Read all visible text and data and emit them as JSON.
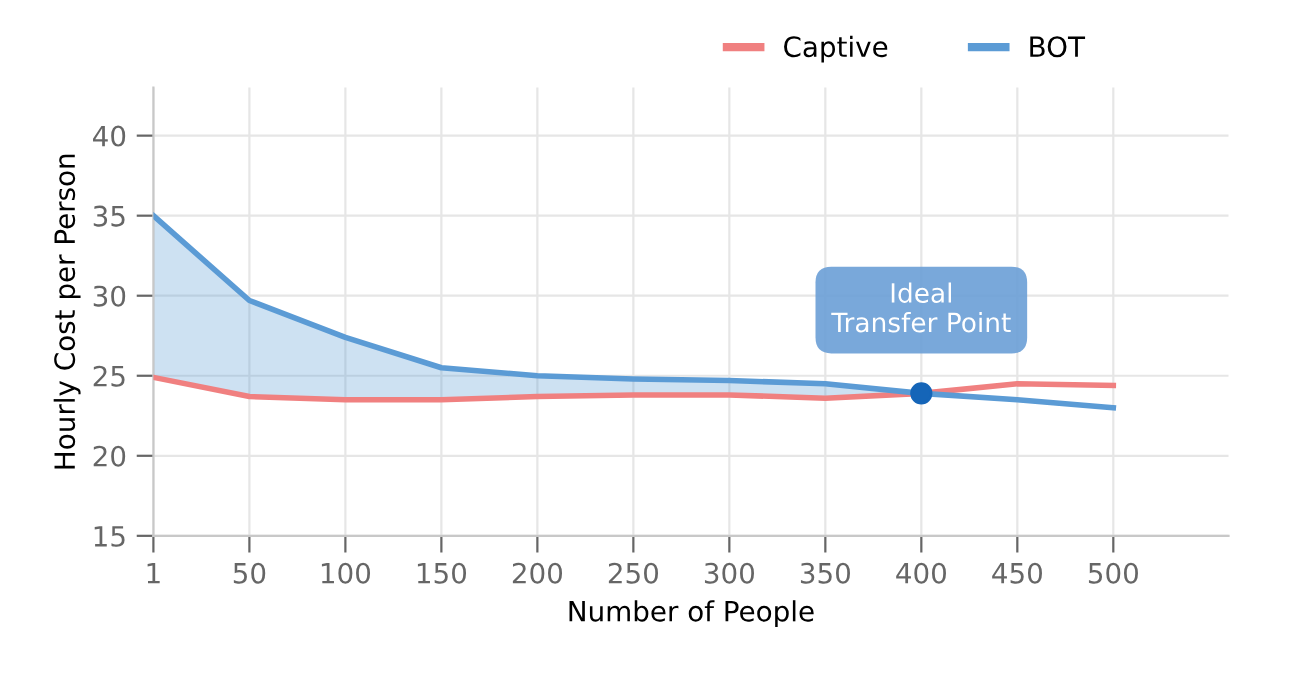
{
  "chart_data": {
    "type": "line",
    "xlabel": "Number of People",
    "ylabel": "Hourly Cost per Person",
    "categories": [
      "1",
      "50",
      "100",
      "150",
      "200",
      "250",
      "300",
      "350",
      "400",
      "450",
      "500"
    ],
    "series": [
      {
        "name": "Captive",
        "color": "#f08080",
        "values": [
          24.9,
          23.7,
          23.5,
          23.5,
          23.7,
          23.8,
          23.8,
          23.6,
          23.9,
          24.5,
          24.4
        ]
      },
      {
        "name": "BOT",
        "color": "#5b9bd5",
        "values": [
          35,
          29.7,
          27.4,
          25.5,
          25.0,
          24.8,
          24.7,
          24.5,
          23.9,
          23.5,
          23.0
        ],
        "lower": [
          24.9,
          23.7,
          23.5,
          23.5,
          23.7,
          23.8,
          23.8,
          23.6,
          23.9,
          null,
          null
        ],
        "upper": [
          35,
          29.7,
          27.4,
          25.5,
          25.0,
          24.8,
          24.7,
          24.5,
          23.9,
          null,
          null
        ]
      }
    ],
    "ylim": [
      15,
      43
    ],
    "yticks": [
      15,
      20,
      25,
      30,
      35,
      40
    ],
    "grid": true,
    "legend": "top",
    "marker": "none",
    "annotations": [
      {
        "text": "Ideal\nTransfer Point",
        "x": "400",
        "y": 23.9
      }
    ]
  }
}
